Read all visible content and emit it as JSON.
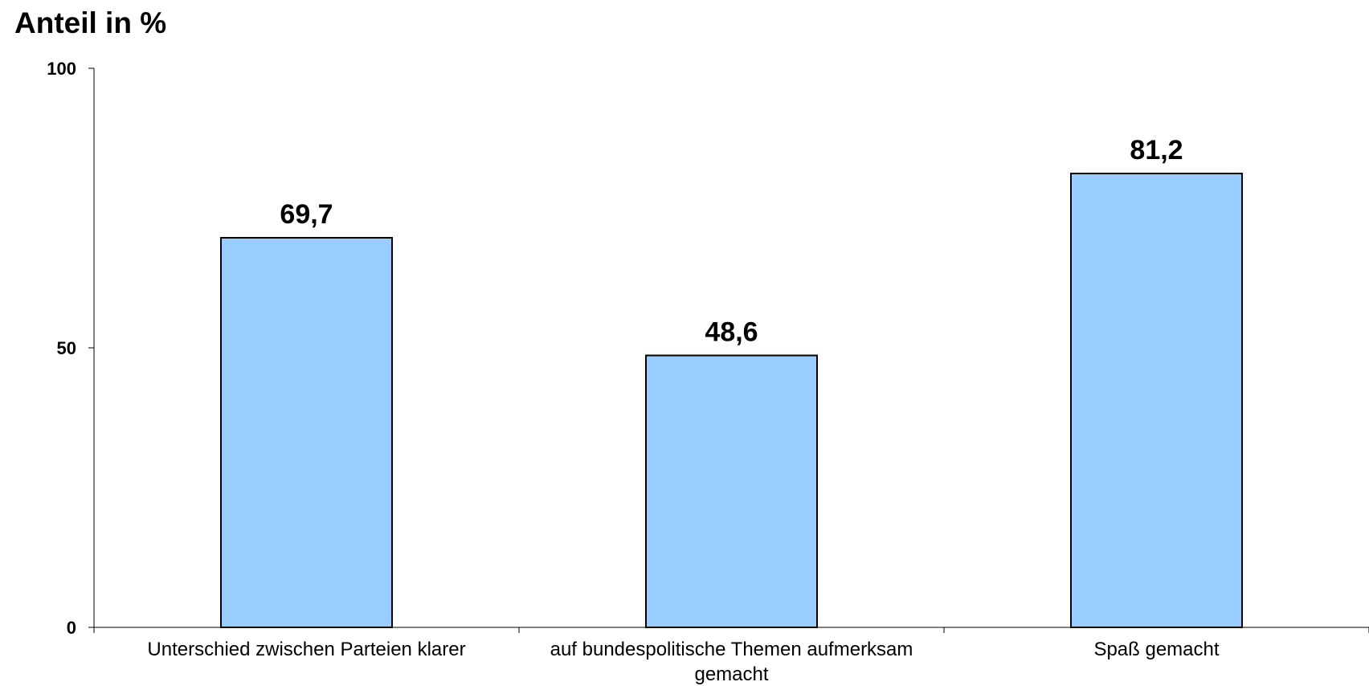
{
  "chart_data": {
    "type": "bar",
    "title": "",
    "xlabel": "",
    "ylabel": "Anteil in %",
    "categories": [
      [
        "Unterschied zwischen Parteien klarer"
      ],
      [
        "auf bundespolitische Themen aufmerksam",
        "gemacht"
      ],
      [
        "Spaß gemacht"
      ]
    ],
    "values": [
      69.7,
      48.6,
      81.2
    ],
    "data_labels": [
      "69,7",
      "48,6",
      "81,2"
    ],
    "ylim": [
      0,
      100
    ],
    "yticks": [
      0,
      50,
      100
    ],
    "ytick_labels": [
      "0",
      "50",
      "100"
    ],
    "grid": false,
    "legend": "none",
    "colors": {
      "bar_fill": "#99ccff",
      "bar_stroke": "#000000",
      "axis": "#000000",
      "text": "#000000"
    }
  }
}
